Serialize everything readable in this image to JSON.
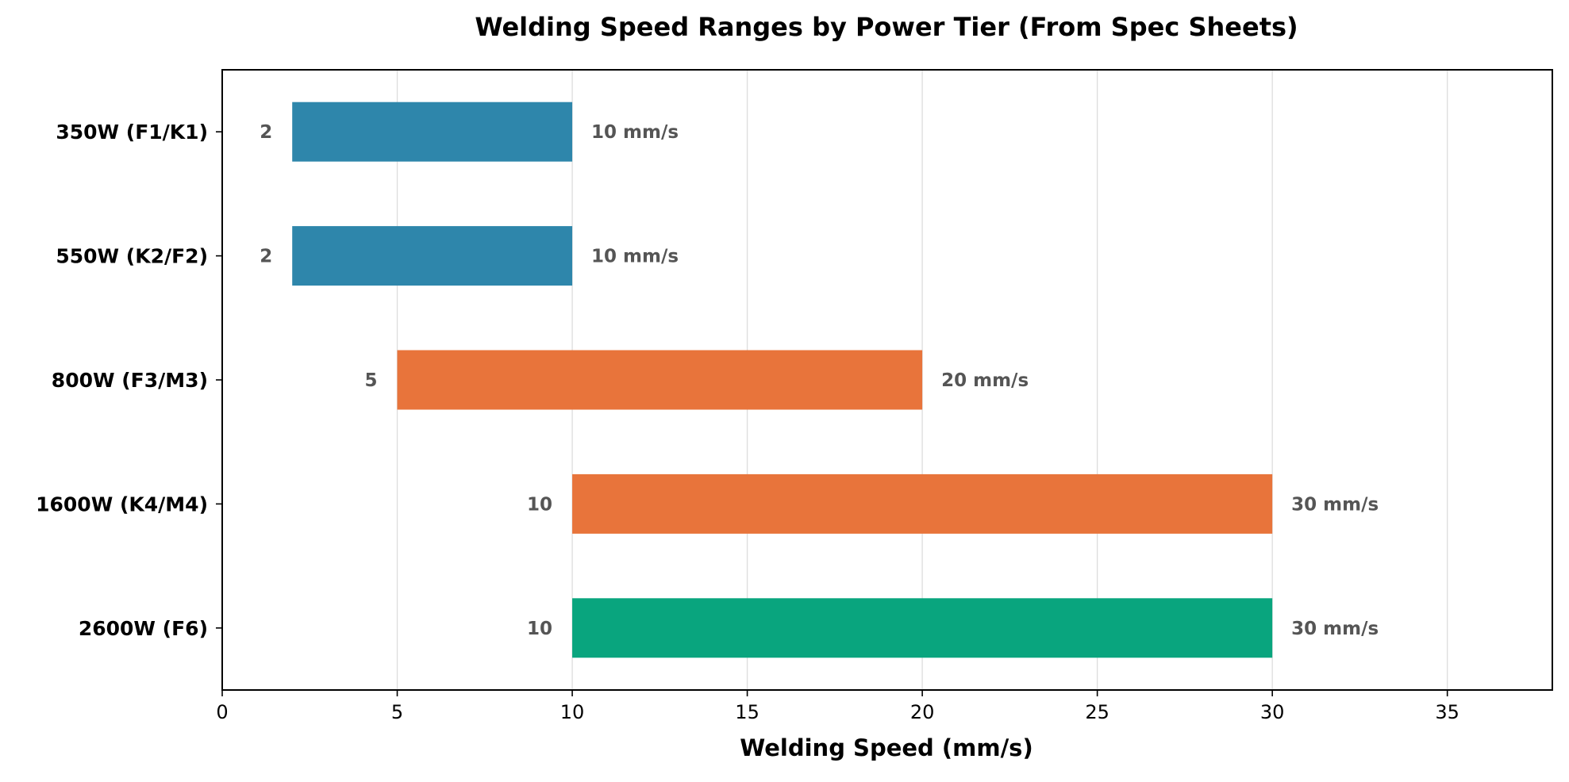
{
  "chart_data": {
    "type": "bar",
    "orientation": "horizontal",
    "title": "Welding Speed Ranges by Power Tier (From Spec Sheets)",
    "xlabel": "Welding Speed (mm/s)",
    "ylabel": "",
    "xlim": [
      0,
      38
    ],
    "xticks": [
      0,
      5,
      10,
      15,
      20,
      25,
      30,
      35
    ],
    "grid": "vertical",
    "categories": [
      "350W (F1/K1)",
      "550W (K2/F2)",
      "800W (F3/M3)",
      "1600W (K4/M4)",
      "2600W (F6)"
    ],
    "ranges": [
      {
        "min": 2,
        "max": 10,
        "min_label": "2",
        "max_label": "10 mm/s",
        "color": "#2e86ab"
      },
      {
        "min": 2,
        "max": 10,
        "min_label": "2",
        "max_label": "10 mm/s",
        "color": "#2e86ab"
      },
      {
        "min": 5,
        "max": 20,
        "min_label": "5",
        "max_label": "20 mm/s",
        "color": "#e8743b"
      },
      {
        "min": 10,
        "max": 30,
        "min_label": "10",
        "max_label": "30 mm/s",
        "color": "#e8743b"
      },
      {
        "min": 10,
        "max": 30,
        "min_label": "10",
        "max_label": "30 mm/s",
        "color": "#09a57e"
      }
    ]
  }
}
